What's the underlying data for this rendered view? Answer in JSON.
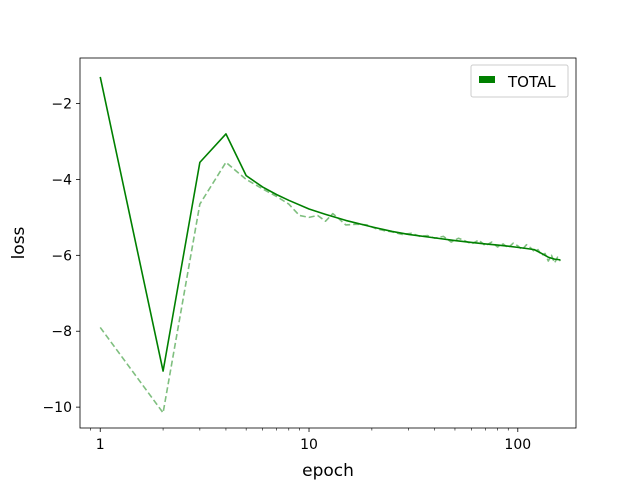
{
  "chart_data": {
    "type": "line",
    "xlabel": "epoch",
    "ylabel": "loss",
    "xscale": "log",
    "xlim": [
      0.8,
      190
    ],
    "ylim": [
      -10.55,
      -0.8
    ],
    "xticks": [
      {
        "value": 1,
        "label": "1"
      },
      {
        "value": 10,
        "label": "10"
      },
      {
        "value": 100,
        "label": "100"
      }
    ],
    "yticks": [
      {
        "value": -2,
        "label": "−2"
      },
      {
        "value": -4,
        "label": "−4"
      },
      {
        "value": -6,
        "label": "−6"
      },
      {
        "value": -8,
        "label": "−8"
      },
      {
        "value": -10,
        "label": "−10"
      }
    ],
    "grid": false,
    "legend": {
      "position": "top-right",
      "entries": [
        {
          "label": "TOTAL",
          "color": "#008000"
        }
      ]
    },
    "series": [
      {
        "name": "TOTAL",
        "style": "solid",
        "color": "#008000",
        "opacity": 1.0,
        "x": [
          1,
          2,
          3,
          4,
          5,
          6,
          7,
          8,
          10,
          12,
          15,
          20,
          25,
          30,
          40,
          50,
          60,
          70,
          80,
          90,
          100,
          110,
          120,
          130,
          140,
          150,
          160
        ],
        "y": [
          -1.3,
          -9.05,
          -3.55,
          -2.8,
          -3.9,
          -4.2,
          -4.4,
          -4.55,
          -4.78,
          -4.92,
          -5.08,
          -5.25,
          -5.37,
          -5.45,
          -5.54,
          -5.61,
          -5.66,
          -5.7,
          -5.73,
          -5.76,
          -5.79,
          -5.82,
          -5.85,
          -5.95,
          -6.05,
          -6.1,
          -6.12
        ]
      },
      {
        "name": "",
        "style": "dashed",
        "color": "#008000",
        "opacity": 0.5,
        "x": [
          1,
          2,
          3,
          4,
          5,
          6,
          7,
          8,
          9,
          10,
          11,
          12,
          13,
          14,
          15,
          17,
          19,
          21,
          23,
          25,
          28,
          31,
          34,
          37,
          40,
          44,
          48,
          52,
          56,
          60,
          65,
          70,
          75,
          80,
          85,
          90,
          95,
          100,
          105,
          110,
          115,
          120,
          125,
          130,
          135,
          140,
          145,
          150,
          155,
          160
        ],
        "y": [
          -7.9,
          -10.15,
          -4.65,
          -3.55,
          -4.0,
          -4.25,
          -4.45,
          -4.65,
          -4.95,
          -5.0,
          -4.95,
          -5.1,
          -4.9,
          -5.05,
          -5.2,
          -5.18,
          -5.2,
          -5.3,
          -5.35,
          -5.38,
          -5.45,
          -5.42,
          -5.5,
          -5.48,
          -5.55,
          -5.5,
          -5.65,
          -5.55,
          -5.62,
          -5.7,
          -5.6,
          -5.75,
          -5.65,
          -5.78,
          -5.7,
          -5.8,
          -5.68,
          -5.75,
          -5.85,
          -5.72,
          -5.8,
          -5.9,
          -5.85,
          -6.0,
          -5.95,
          -6.15,
          -6.0,
          -6.2,
          -6.05,
          -6.15
        ]
      }
    ]
  }
}
